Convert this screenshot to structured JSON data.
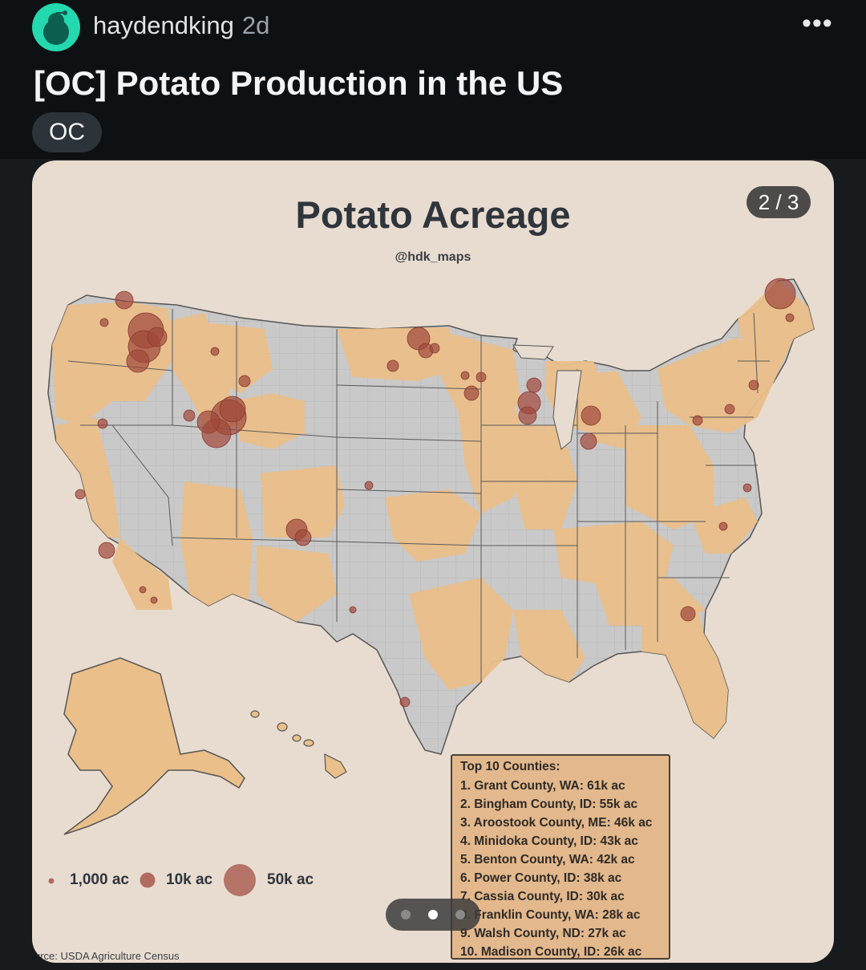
{
  "post": {
    "username": "haydendking",
    "age": "2d",
    "more_label": "•••",
    "title": "[OC] Potato Production in the US",
    "flair": "OC"
  },
  "image": {
    "title": "Potato Acreage",
    "handle": "@hdk_maps",
    "counter": "2 / 3",
    "legend": [
      "1,000 ac",
      "10k ac",
      "50k ac"
    ],
    "top_counties": {
      "heading": "Top 10 Counties:",
      "items": [
        "1.  Grant County, WA: 61k ac",
        "2.  Bingham County, ID: 55k ac",
        "3.  Aroostook County, ME: 46k ac",
        "4.  Minidoka County, ID: 43k ac",
        "5.  Benton County, WA: 42k ac",
        "6.  Power County, ID: 38k ac",
        "7.  Cassia County, ID: 30k ac",
        "8.  Franklin County, WA: 28k ac",
        "9.  Walsh County, ND: 27k ac",
        "10. Madison County, ID: 26k ac"
      ]
    },
    "source": "urce: USDA Agriculture Census",
    "carousel": {
      "total": 3,
      "active": 2
    }
  },
  "colors": {
    "card_bg": "#e8dcd0",
    "land_gray": "#c9c9c9",
    "land_orange": "#eabf8a",
    "bubble": "#a0473a"
  }
}
